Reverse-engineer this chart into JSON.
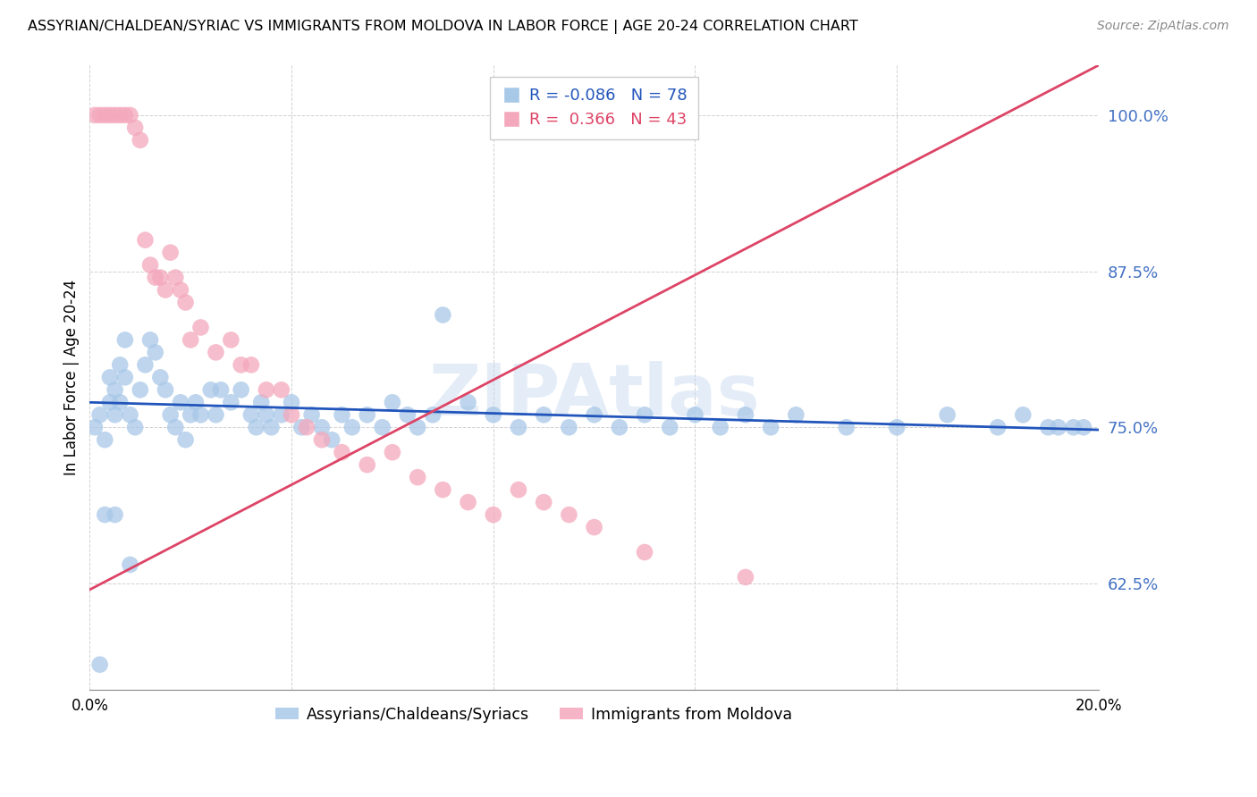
{
  "title": "ASSYRIAN/CHALDEAN/SYRIAC VS IMMIGRANTS FROM MOLDOVA IN LABOR FORCE | AGE 20-24 CORRELATION CHART",
  "source": "Source: ZipAtlas.com",
  "ylabel": "In Labor Force | Age 20-24",
  "ylabel_ticks": [
    0.625,
    0.75,
    0.875,
    1.0
  ],
  "ylabel_tick_labels": [
    "62.5%",
    "75.0%",
    "87.5%",
    "100.0%"
  ],
  "xlim": [
    0.0,
    0.2
  ],
  "ylim": [
    0.54,
    1.04
  ],
  "blue_R": -0.086,
  "blue_N": 78,
  "pink_R": 0.366,
  "pink_N": 43,
  "blue_color": "#a8c8e8",
  "pink_color": "#f4a8bc",
  "blue_line_color": "#2255bb",
  "pink_line_color": "#dd4466",
  "watermark": "ZIPAtlas",
  "legend_label_blue": "Assyrians/Chaldeans/Syriacs",
  "legend_label_pink": "Immigrants from Moldova",
  "blue_line_x0": 0.0,
  "blue_line_y0": 0.77,
  "blue_line_x1": 0.2,
  "blue_line_y1": 0.748,
  "pink_line_x0": 0.0,
  "pink_line_y0": 0.62,
  "pink_line_x1": 0.2,
  "pink_line_y1": 1.04,
  "blue_x": [
    0.001,
    0.002,
    0.003,
    0.004,
    0.004,
    0.005,
    0.005,
    0.006,
    0.006,
    0.007,
    0.007,
    0.008,
    0.009,
    0.01,
    0.011,
    0.012,
    0.013,
    0.014,
    0.015,
    0.016,
    0.017,
    0.018,
    0.019,
    0.02,
    0.021,
    0.022,
    0.024,
    0.025,
    0.026,
    0.028,
    0.03,
    0.032,
    0.033,
    0.034,
    0.035,
    0.036,
    0.038,
    0.04,
    0.042,
    0.044,
    0.046,
    0.048,
    0.05,
    0.052,
    0.055,
    0.058,
    0.06,
    0.063,
    0.065,
    0.068,
    0.07,
    0.075,
    0.08,
    0.085,
    0.09,
    0.095,
    0.1,
    0.105,
    0.11,
    0.115,
    0.12,
    0.125,
    0.13,
    0.135,
    0.14,
    0.15,
    0.16,
    0.17,
    0.18,
    0.185,
    0.19,
    0.192,
    0.195,
    0.197,
    0.005,
    0.003,
    0.008,
    0.002
  ],
  "blue_y": [
    0.75,
    0.76,
    0.74,
    0.77,
    0.79,
    0.78,
    0.76,
    0.77,
    0.8,
    0.82,
    0.79,
    0.76,
    0.75,
    0.78,
    0.8,
    0.82,
    0.81,
    0.79,
    0.78,
    0.76,
    0.75,
    0.77,
    0.74,
    0.76,
    0.77,
    0.76,
    0.78,
    0.76,
    0.78,
    0.77,
    0.78,
    0.76,
    0.75,
    0.77,
    0.76,
    0.75,
    0.76,
    0.77,
    0.75,
    0.76,
    0.75,
    0.74,
    0.76,
    0.75,
    0.76,
    0.75,
    0.77,
    0.76,
    0.75,
    0.76,
    0.84,
    0.77,
    0.76,
    0.75,
    0.76,
    0.75,
    0.76,
    0.75,
    0.76,
    0.75,
    0.76,
    0.75,
    0.76,
    0.75,
    0.76,
    0.75,
    0.75,
    0.76,
    0.75,
    0.76,
    0.75,
    0.75,
    0.75,
    0.75,
    0.68,
    0.68,
    0.64,
    0.56
  ],
  "pink_x": [
    0.001,
    0.002,
    0.003,
    0.004,
    0.005,
    0.006,
    0.007,
    0.008,
    0.009,
    0.01,
    0.011,
    0.012,
    0.013,
    0.014,
    0.015,
    0.016,
    0.017,
    0.018,
    0.019,
    0.02,
    0.022,
    0.025,
    0.028,
    0.03,
    0.032,
    0.035,
    0.038,
    0.04,
    0.043,
    0.046,
    0.05,
    0.055,
    0.06,
    0.065,
    0.07,
    0.075,
    0.08,
    0.085,
    0.09,
    0.095,
    0.1,
    0.11,
    0.13
  ],
  "pink_y": [
    1.0,
    1.0,
    1.0,
    1.0,
    1.0,
    1.0,
    1.0,
    1.0,
    0.99,
    0.98,
    0.9,
    0.88,
    0.87,
    0.87,
    0.86,
    0.89,
    0.87,
    0.86,
    0.85,
    0.82,
    0.83,
    0.81,
    0.82,
    0.8,
    0.8,
    0.78,
    0.78,
    0.76,
    0.75,
    0.74,
    0.73,
    0.72,
    0.73,
    0.71,
    0.7,
    0.69,
    0.68,
    0.7,
    0.69,
    0.68,
    0.67,
    0.65,
    0.63
  ]
}
